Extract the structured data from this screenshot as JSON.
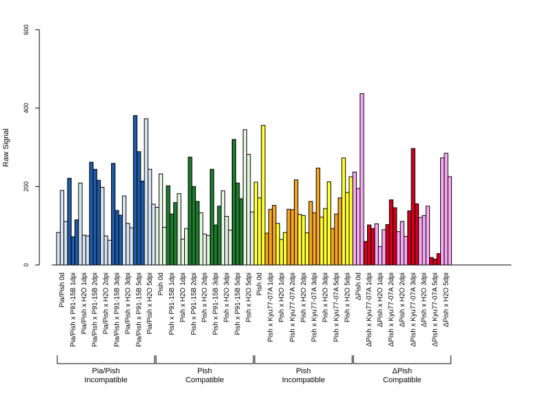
{
  "chart_data": {
    "type": "bar",
    "ylabel": "Raw Signal",
    "ylim": [
      0,
      600
    ],
    "yticks": [
      "0",
      "200",
      "400",
      "600"
    ],
    "bars_per_category": 3,
    "colors": {
      "light_blue": "#d6e4f2",
      "dark_blue": "#1f5aa6",
      "light_green": "#e6f5e1",
      "dark_green": "#1e7a2e",
      "yellow": "#ffff33",
      "orange": "#f5a623",
      "pink": "#f7a8f2",
      "red": "#d1001c"
    },
    "categories": [
      {
        "label": "Pia/Pish 0d",
        "color": "light_blue",
        "values": [
          83,
          190,
          111
        ]
      },
      {
        "label": "Pia/Pish x P91-15B 1dpi",
        "color": "dark_blue",
        "values": [
          221,
          72,
          115
        ]
      },
      {
        "label": "Pia/Pish x H2O 1dpi",
        "color": "light_blue",
        "values": [
          209,
          76,
          74
        ]
      },
      {
        "label": "Pia/Pish x P91-15B 2dpi",
        "color": "dark_blue",
        "values": [
          262,
          244,
          216
        ]
      },
      {
        "label": "Pia/Pish x H2O 2dpi",
        "color": "light_blue",
        "values": [
          198,
          74,
          63
        ]
      },
      {
        "label": "Pia/Pish x P91-15B 3dpi",
        "color": "dark_blue",
        "values": [
          259,
          139,
          127
        ]
      },
      {
        "label": "Pia/Pish x H2O 3dpi",
        "color": "light_blue",
        "values": [
          176,
          106,
          95
        ]
      },
      {
        "label": "Pia/Pish x P91-15B 5dpi",
        "color": "dark_blue",
        "values": [
          381,
          289,
          214
        ]
      },
      {
        "label": "Pia/Pish x H2O 5dpi",
        "color": "light_blue",
        "values": [
          373,
          244,
          155
        ]
      },
      {
        "label": "Pish 0d",
        "color": "light_green",
        "values": [
          147,
          232,
          96
        ]
      },
      {
        "label": "Pish x P91-15B 1dpi",
        "color": "dark_green",
        "values": [
          202,
          130,
          159
        ]
      },
      {
        "label": "Pish x H2O 1dpi",
        "color": "light_green",
        "values": [
          182,
          66,
          93
        ]
      },
      {
        "label": "Pish x P91-15B 2dpi",
        "color": "dark_green",
        "values": [
          275,
          200,
          162
        ]
      },
      {
        "label": "Pish x H2O 2dpi",
        "color": "light_green",
        "values": [
          133,
          79,
          75
        ]
      },
      {
        "label": "Pish x P91-15B 3dpi",
        "color": "dark_green",
        "values": [
          244,
          102,
          150
        ]
      },
      {
        "label": "Pish x H2O 3dpi",
        "color": "light_green",
        "values": [
          189,
          124,
          89
        ]
      },
      {
        "label": "Pish x P91-15B 5dpi",
        "color": "dark_green",
        "values": [
          320,
          209,
          169
        ]
      },
      {
        "label": "Pish x H2O 5dpi",
        "color": "light_green",
        "values": [
          345,
          282,
          135
        ]
      },
      {
        "label": "Pish 0d",
        "color": "yellow",
        "values": [
          211,
          171,
          356
        ]
      },
      {
        "label": "Pish x Kyu77-07A 1dpi",
        "color": "orange",
        "values": [
          81,
          142,
          152
        ]
      },
      {
        "label": "Pish x H2O 1dpi",
        "color": "yellow",
        "values": [
          106,
          65,
          83
        ]
      },
      {
        "label": "Pish x Kyu77-07A 2dpi",
        "color": "orange",
        "values": [
          142,
          141,
          217
        ]
      },
      {
        "label": "Pish x H2O 2dpi",
        "color": "yellow",
        "values": [
          129,
          126,
          82
        ]
      },
      {
        "label": "Pish x Kyu77-07A 3dpi",
        "color": "orange",
        "values": [
          162,
          133,
          247
        ]
      },
      {
        "label": "Pish x H2O 3dpi",
        "color": "yellow",
        "values": [
          122,
          144,
          212
        ]
      },
      {
        "label": "Pish x Kyu77-07A 5dpi",
        "color": "orange",
        "values": [
          93,
          130,
          171
        ]
      },
      {
        "label": "Pish x H2O 5dpi",
        "color": "yellow",
        "values": [
          273,
          185,
          225
        ]
      },
      {
        "label": "ΔPish 0d",
        "color": "pink",
        "values": [
          237,
          195,
          437
        ]
      },
      {
        "label": "ΔPish x Kyu77-07A 1dpi",
        "color": "red",
        "values": [
          60,
          102,
          93
        ]
      },
      {
        "label": "ΔPish x H2O 1dpi",
        "color": "pink",
        "values": [
          105,
          47,
          90
        ]
      },
      {
        "label": "ΔPish x Kyu77-07A 2dpi",
        "color": "red",
        "values": [
          103,
          166,
          146
        ]
      },
      {
        "label": "ΔPish x H2O 2dpi",
        "color": "pink",
        "values": [
          85,
          111,
          73
        ]
      },
      {
        "label": "ΔPish x Kyu77-07A 3dpi",
        "color": "red",
        "values": [
          138,
          297,
          156
        ]
      },
      {
        "label": "ΔPish x H2O 3dpi",
        "color": "pink",
        "values": [
          121,
          126,
          150
        ]
      },
      {
        "label": "ΔPish x Kyu77-07A 5dpi",
        "color": "red",
        "values": [
          19,
          15,
          29
        ]
      },
      {
        "label": "ΔPish x H2O 5dpi",
        "color": "pink",
        "values": [
          273,
          285,
          225
        ]
      }
    ],
    "groups": [
      {
        "label_line1": "Pia/Pish",
        "label_line2": "Incompatible",
        "first_category": 0,
        "last_category": 8
      },
      {
        "label_line1": "Pish",
        "label_line2": "Compatible",
        "first_category": 9,
        "last_category": 17
      },
      {
        "label_line1": "Pish",
        "label_line2": "Incompatible",
        "first_category": 18,
        "last_category": 26
      },
      {
        "label_line1": "ΔPish",
        "label_line2": "Compatible",
        "first_category": 27,
        "last_category": 35
      }
    ]
  }
}
